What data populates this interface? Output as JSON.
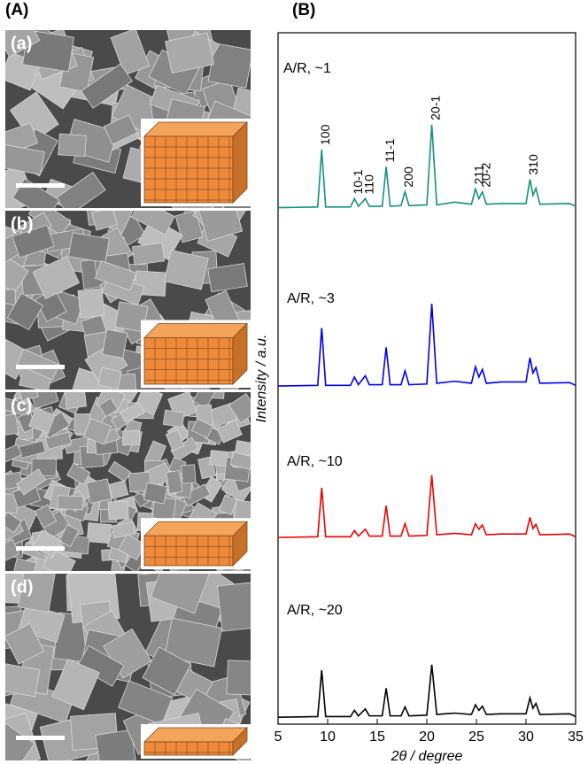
{
  "panel_labels": [
    "(A)",
    "(B)"
  ],
  "image_labels": [
    "(a)",
    "(b)",
    "(c)",
    "(d)"
  ],
  "chart_data": {
    "type": "line",
    "xlabel": "2θ / degree",
    "ylabel": "Intensity / a.u.",
    "xlim": [
      5,
      35
    ],
    "xticks": [
      5,
      10,
      15,
      20,
      25,
      30,
      35
    ],
    "ylim": [
      0,
      100
    ],
    "x": [
      5,
      9.0,
      9.4,
      9.8,
      12.3,
      12.7,
      13.1,
      13.8,
      14.2,
      15.5,
      15.9,
      16.3,
      17.4,
      17.8,
      18.2,
      20.0,
      20.5,
      21.0,
      22.8,
      24.5,
      24.9,
      25.25,
      25.6,
      26.0,
      27.5,
      28.5,
      30.0,
      30.4,
      30.7,
      31.0,
      31.4,
      34.4,
      35
    ],
    "series": [
      {
        "name": "A/R, ~1",
        "color": "#16907f",
        "values": [
          74.7,
          74.8,
          83.1,
          74.8,
          74.8,
          76.0,
          74.9,
          76.0,
          74.9,
          74.9,
          80.6,
          74.9,
          75.0,
          77.0,
          75.0,
          75.1,
          86.7,
          75.1,
          75.5,
          75.2,
          77.4,
          76.0,
          77.0,
          75.2,
          75.3,
          75.3,
          75.3,
          78.8,
          76.5,
          77.5,
          75.2,
          75.3,
          74.9
        ]
      },
      {
        "name": "A/R, ~3",
        "color": "#0000ee",
        "values": [
          48.9,
          49.0,
          57.3,
          49.0,
          49.0,
          50.2,
          49.1,
          50.4,
          49.1,
          49.1,
          54.5,
          49.1,
          49.1,
          51.1,
          49.1,
          49.2,
          60.8,
          49.3,
          49.6,
          49.3,
          51.7,
          50.2,
          51.3,
          49.3,
          49.5,
          49.5,
          49.5,
          53.0,
          50.8,
          51.6,
          49.3,
          49.4,
          49.0
        ]
      },
      {
        "name": "A/R, ~10",
        "color": "#ee0000",
        "values": [
          27.0,
          27.1,
          34.2,
          27.1,
          27.1,
          28.0,
          27.2,
          28.2,
          27.2,
          27.2,
          31.6,
          27.2,
          27.2,
          29.0,
          27.2,
          27.3,
          36.0,
          27.4,
          27.6,
          27.4,
          29.0,
          28.2,
          28.8,
          27.4,
          27.5,
          27.5,
          27.5,
          29.9,
          28.3,
          28.9,
          27.4,
          27.5,
          27.1
        ]
      },
      {
        "name": "A/R, ~20",
        "color": "#000000",
        "values": [
          1.0,
          1.1,
          7.8,
          1.1,
          1.1,
          2.0,
          1.2,
          2.2,
          1.2,
          1.2,
          5.2,
          1.2,
          1.2,
          2.5,
          1.2,
          1.3,
          8.6,
          1.4,
          1.6,
          1.4,
          2.8,
          2.0,
          2.6,
          1.4,
          1.5,
          1.5,
          1.5,
          3.8,
          2.3,
          3.0,
          1.4,
          1.5,
          1.1
        ]
      }
    ],
    "peak_labels": [
      {
        "label": "100",
        "x": 9.4
      },
      {
        "label": "10-1",
        "x": 12.7
      },
      {
        "label": "110",
        "x": 13.8
      },
      {
        "label": "11-1",
        "x": 15.9
      },
      {
        "label": "200",
        "x": 17.8
      },
      {
        "label": "20-1",
        "x": 20.5
      },
      {
        "label": "211",
        "x": 24.9
      },
      {
        "label": "20-2",
        "x": 25.6
      },
      {
        "label": "310",
        "x": 30.4
      }
    ]
  }
}
